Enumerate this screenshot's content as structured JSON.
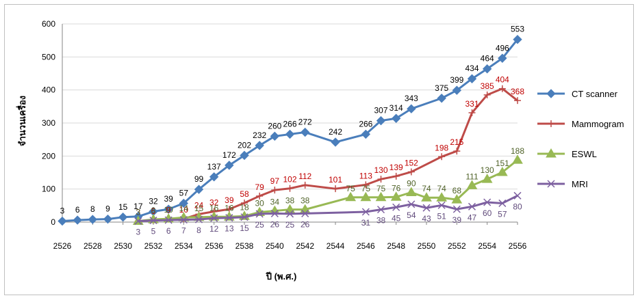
{
  "chart_data": {
    "type": "line",
    "title": "",
    "xlabel": "ปี (พ.ศ.)",
    "ylabel": "จำนวนเครื่อง",
    "ylim": [
      0,
      600
    ],
    "xlim": [
      2526,
      2556
    ],
    "y_ticks": [
      "0",
      "100",
      "200",
      "300",
      "400",
      "500",
      "600"
    ],
    "x_ticks": [
      "2526",
      "2528",
      "2530",
      "2532",
      "2534",
      "2536",
      "2538",
      "2540",
      "2542",
      "2544",
      "2546",
      "2548",
      "2550",
      "2552",
      "2554",
      "2556"
    ],
    "grid": "horizontal",
    "legend": "right",
    "series": [
      {
        "name": "CT scanner",
        "color": "#4a7ebb",
        "marker": "diamond",
        "x": [
          2526,
          2527,
          2528,
          2529,
          2530,
          2531,
          2532,
          2533,
          2534,
          2535,
          2536,
          2537,
          2538,
          2539,
          2540,
          2541,
          2542,
          2544,
          2546,
          2547,
          2548,
          2549,
          2551,
          2552,
          2553,
          2554,
          2555,
          2556
        ],
        "values": [
          3,
          6,
          8,
          9,
          15,
          17,
          32,
          39,
          57,
          99,
          137,
          172,
          202,
          232,
          260,
          266,
          272,
          242,
          266,
          307,
          314,
          343,
          375,
          399,
          434,
          464,
          496,
          553
        ]
      },
      {
        "name": "Mammogram",
        "color": "#be4b48",
        "marker": "plus",
        "x": [
          2531,
          2532,
          2533,
          2534,
          2535,
          2536,
          2537,
          2538,
          2539,
          2540,
          2541,
          2542,
          2544,
          2546,
          2547,
          2548,
          2549,
          2551,
          2552,
          2553,
          2554,
          2555,
          2556
        ],
        "values": [
          3,
          6,
          9,
          10,
          24,
          32,
          39,
          58,
          79,
          97,
          102,
          112,
          101,
          113,
          130,
          139,
          152,
          198,
          215,
          331,
          385,
          404,
          368
        ]
      },
      {
        "name": "ESWL",
        "color": "#98b954",
        "marker": "triangle",
        "x": [
          2531,
          2532,
          2533,
          2534,
          2535,
          2536,
          2537,
          2538,
          2539,
          2540,
          2541,
          2542,
          2545,
          2546,
          2547,
          2548,
          2549,
          2550,
          2551,
          2552,
          2553,
          2554,
          2555,
          2556
        ],
        "values": [
          3,
          8,
          10,
          14,
          15,
          16,
          16,
          18,
          30,
          34,
          38,
          38,
          75,
          75,
          75,
          76,
          90,
          74,
          74,
          68,
          111,
          130,
          151,
          188
        ]
      },
      {
        "name": "MRI",
        "color": "#7d60a0",
        "marker": "x",
        "x": [
          2531,
          2532,
          2533,
          2534,
          2535,
          2536,
          2537,
          2538,
          2539,
          2540,
          2541,
          2542,
          2546,
          2547,
          2548,
          2549,
          2550,
          2551,
          2552,
          2553,
          2554,
          2555,
          2556
        ],
        "values": [
          3,
          5,
          6,
          7,
          8,
          12,
          13,
          15,
          25,
          26,
          25,
          26,
          31,
          38,
          45,
          54,
          43,
          51,
          39,
          47,
          60,
          57,
          80
        ]
      }
    ]
  }
}
